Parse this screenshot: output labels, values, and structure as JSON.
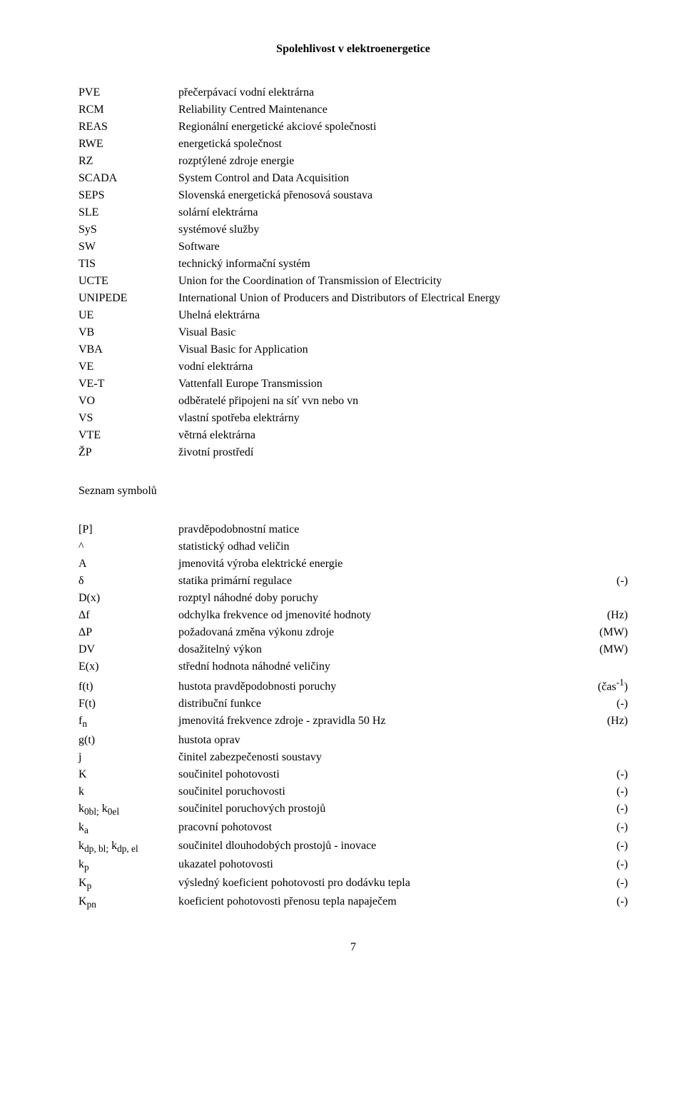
{
  "header": "Spolehlivost v elektroenergetice",
  "abbreviations": [
    {
      "key": "PVE",
      "val": "přečerpávací vodní elektrárna"
    },
    {
      "key": "RCM",
      "val": "Reliability Centred Maintenance"
    },
    {
      "key": "REAS",
      "val": "Regionální energetické akciové společnosti"
    },
    {
      "key": "RWE",
      "val": "energetická společnost"
    },
    {
      "key": "RZ",
      "val": "rozptýlené zdroje energie"
    },
    {
      "key": "SCADA",
      "val": "System Control and Data Acquisition"
    },
    {
      "key": "SEPS",
      "val": "Slovenská energetická přenosová soustava"
    },
    {
      "key": "SLE",
      "val": "solární elektrárna"
    },
    {
      "key": "SyS",
      "val": "systémové služby"
    },
    {
      "key": "SW",
      "val": "Software"
    },
    {
      "key": "TIS",
      "val": "technický informační systém"
    },
    {
      "key": "UCTE",
      "val": "Union for the Coordination of Transmission of Electricity"
    },
    {
      "key": "UNIPEDE",
      "val": "International Union of Producers and Distributors of Electrical Energy"
    },
    {
      "key": "UE",
      "val": "Uhelná elektrárna"
    },
    {
      "key": "VB",
      "val": "Visual Basic"
    },
    {
      "key": "VBA",
      "val": "Visual Basic for Application"
    },
    {
      "key": "VE",
      "val": "vodní elektrárna"
    },
    {
      "key": "VE-T",
      "val": "Vattenfall Europe Transmission"
    },
    {
      "key": "VO",
      "val": "odběratelé připojeni na síť vvn nebo vn"
    },
    {
      "key": "VS",
      "val": "vlastní spotřeba elektrárny"
    },
    {
      "key": "VTE",
      "val": "větrná elektrárna"
    },
    {
      "key": "ŽP",
      "val": "životní prostředí"
    }
  ],
  "section_symbols_title": "Seznam symbolů",
  "symbols": [
    {
      "key": "[P]",
      "desc": "pravděpodobnostní matice",
      "unit": ""
    },
    {
      "key": "^",
      "desc": "statistický odhad veličin",
      "unit": ""
    },
    {
      "key": "A",
      "desc": "jmenovitá výroba elektrické energie",
      "unit": ""
    },
    {
      "key": "δ",
      "desc": "statika primární regulace",
      "unit": "(-)"
    },
    {
      "key": "D(x)",
      "desc": "rozptyl náhodné doby poruchy",
      "unit": ""
    },
    {
      "key": "Δf",
      "desc": "odchylka frekvence od jmenovité hodnoty",
      "unit": "(Hz)"
    },
    {
      "key": "ΔP",
      "desc": "požadovaná změna výkonu zdroje",
      "unit": "(MW)"
    },
    {
      "key": "DV",
      "desc": "dosažitelný výkon",
      "unit": "(MW)"
    },
    {
      "key": "E(x)",
      "desc": "střední hodnota náhodné veličiny",
      "unit": ""
    },
    {
      "key_html": "f(t)",
      "desc": "hustota pravděpodobnosti poruchy",
      "unit_html": "(čas<sup>-1</sup>)"
    },
    {
      "key": "F(t)",
      "desc": "distribuční funkce",
      "unit": "(-)"
    },
    {
      "key_html": "f<sub>n</sub>",
      "desc": "jmenovitá frekvence zdroje - zpravidla 50 Hz",
      "unit": "(Hz)"
    },
    {
      "key": "g(t)",
      "desc": "hustota oprav",
      "unit": ""
    },
    {
      "key": "j",
      "desc": "činitel zabezpečenosti soustavy",
      "unit": ""
    },
    {
      "key": "K",
      "desc": "součinitel pohotovosti",
      "unit": "(-)"
    },
    {
      "key": "k",
      "desc": "součinitel poruchovosti",
      "unit": "(-)"
    },
    {
      "key_html": "k<sub>0bl;</sub> k<sub>0el</sub>",
      "desc": "součinitel poruchových prostojů",
      "unit": "(-)"
    },
    {
      "key_html": "k<sub>a</sub>",
      "desc": "pracovní pohotovost",
      "unit": "(-)"
    },
    {
      "key_html": "k<sub>dp, bl;</sub> k<sub>dp, el</sub>",
      "desc": "součinitel dlouhodobých prostojů - inovace",
      "unit": "(-)"
    },
    {
      "key_html": "k<sub>p</sub>",
      "desc": "ukazatel pohotovosti",
      "unit": "(-)"
    },
    {
      "key_html": "K<sub>p</sub>",
      "desc": "výsledný koeficient pohotovosti pro dodávku tepla",
      "unit": "(-)"
    },
    {
      "key_html": "K<sub>pn</sub>",
      "desc": "koeficient pohotovosti přenosu tepla napaječem",
      "unit": "(-)"
    }
  ],
  "page_number": "7"
}
